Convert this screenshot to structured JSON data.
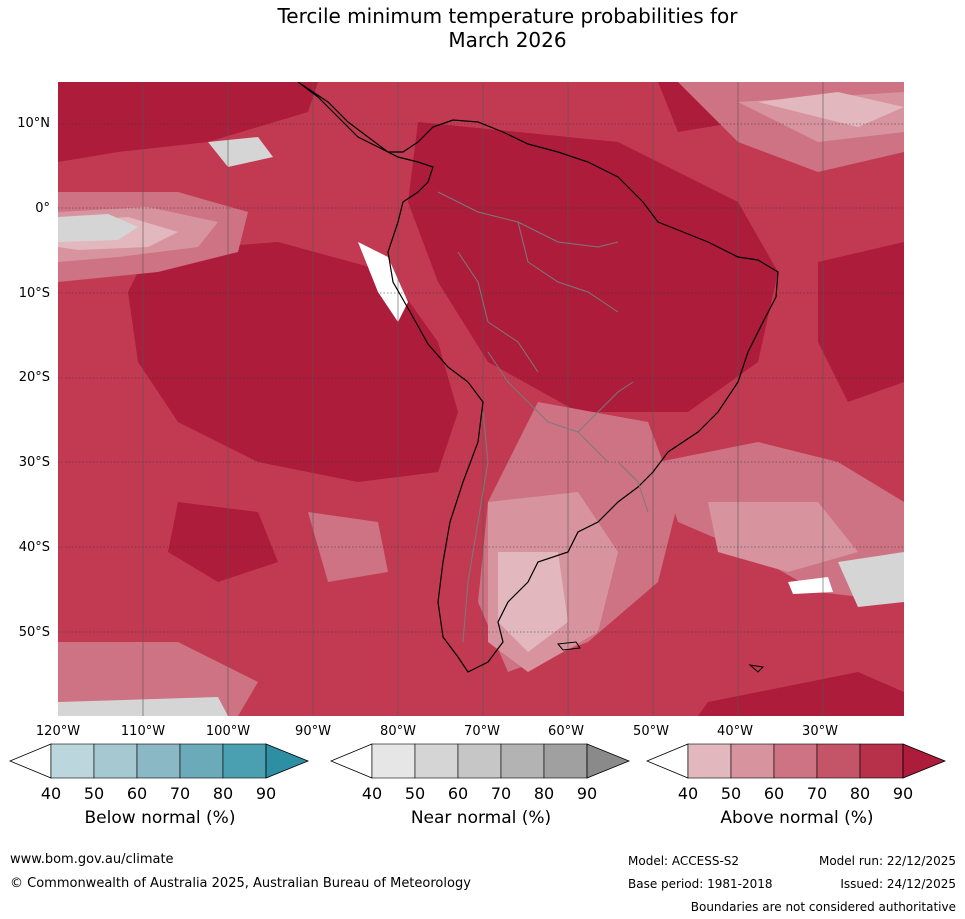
{
  "title_line1": "Tercile minimum temperature probabilities for",
  "title_line2": "March 2026",
  "latitude_labels": [
    "10°N",
    "0°",
    "10°S",
    "20°S",
    "30°S",
    "40°S",
    "50°S"
  ],
  "longitude_labels": [
    "120°W",
    "110°W",
    "100°W",
    "90°W",
    "80°W",
    "70°W",
    "60°W",
    "50°W",
    "40°W",
    "30°W"
  ],
  "colorbars": [
    {
      "label": "Below normal (%)",
      "ticks": [
        "40",
        "50",
        "60",
        "70",
        "80",
        "90"
      ],
      "colors": [
        "#ffffff",
        "#bcd6dd",
        "#a6c8d0",
        "#8ab8c4",
        "#6aaab9",
        "#4a9fb0",
        "#2e8fa4"
      ]
    },
    {
      "label": "Near normal (%)",
      "ticks": [
        "40",
        "50",
        "60",
        "70",
        "80",
        "90"
      ],
      "colors": [
        "#ffffff",
        "#e6e6e6",
        "#d5d5d5",
        "#c6c6c6",
        "#b3b3b3",
        "#a0a0a0",
        "#8a8a8a"
      ]
    },
    {
      "label": "Above normal (%)",
      "ticks": [
        "40",
        "50",
        "60",
        "70",
        "80",
        "90"
      ],
      "colors": [
        "#ffffff",
        "#e2b8be",
        "#d7949f",
        "#cd7383",
        "#c45568",
        "#b8314b",
        "#ad1c3b"
      ]
    }
  ],
  "footer": {
    "website": "www.bom.gov.au/climate",
    "copyright": "© Commonwealth of Australia 2025, Australian Bureau of Meteorology",
    "model": "Model: ACCESS-S2",
    "model_run": "Model run: 22/12/2025",
    "base_period": "Base period: 1981-2018",
    "issued": "Issued: 24/12/2025",
    "disclaimer": "Boundaries are not considered authoritative"
  }
}
